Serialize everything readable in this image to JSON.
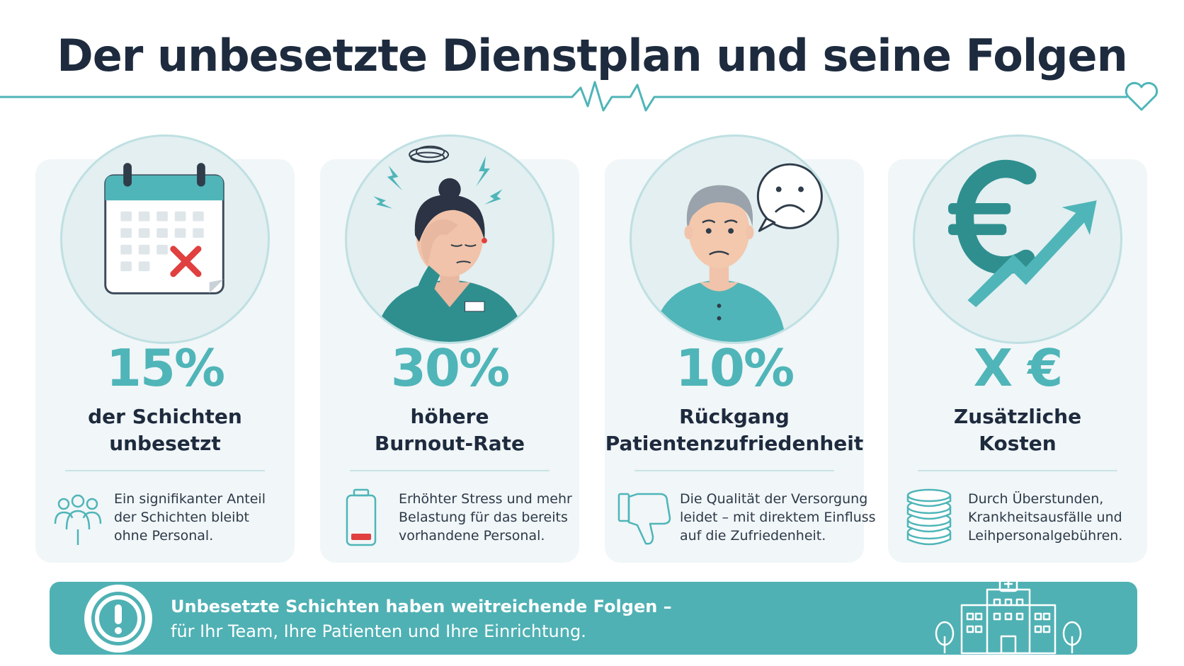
{
  "title": "Der unbesetzte Dienstplan und seine Folgen",
  "colors": {
    "accent": "#4fb5b8",
    "dark": "#1e2b3e",
    "card": "#f1f6f8",
    "banner": "#4fb1b4",
    "alert_red": "#e0403f"
  },
  "cards": [
    {
      "illustration": "calendar-with-x-icon",
      "stat": "15%",
      "label_lines": [
        "der Schichten",
        "unbesetzt"
      ],
      "icon": "team-icon",
      "desc_lines": [
        "Ein signifikanter Anteil",
        "der Schichten bleibt",
        "ohne Personal."
      ]
    },
    {
      "illustration": "stressed-nurse-illustration",
      "stat": "30%",
      "label_lines": [
        "höhere",
        "Burnout-Rate"
      ],
      "icon": "low-battery-icon",
      "desc_lines": [
        "Erhöhter Stress und mehr",
        "Belastung für das bereits",
        "vorhandene Personal."
      ]
    },
    {
      "illustration": "unhappy-patient-illustration",
      "stat": "10%",
      "label_lines": [
        "Rückgang",
        "Patientenzufriedenheit"
      ],
      "icon": "thumbs-down-icon",
      "desc_lines": [
        "Die Qualität der Versorgung",
        "leidet – mit direktem Einfluss",
        "auf die Zufriedenheit."
      ]
    },
    {
      "illustration": "euro-rising-arrow-icon",
      "stat": "X €",
      "label_lines": [
        "Zusätzliche",
        "Kosten"
      ],
      "icon": "coin-stack-icon",
      "desc_lines": [
        "Durch Überstunden,",
        "Krankheitsausfälle und",
        "Leihpersonalgebühren."
      ]
    }
  ],
  "banner": {
    "icon": "exclamation-icon",
    "line1": "Unbesetzte Schichten haben weitreichende Folgen –",
    "line2": "für Ihr Team, Ihre Patienten und Ihre Einrichtung.",
    "illustration": "hospital-building-icon"
  }
}
